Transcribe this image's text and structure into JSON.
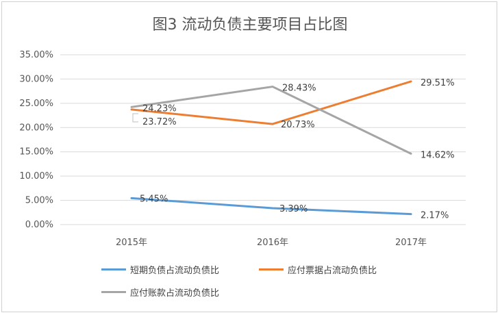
{
  "chart_data": {
    "type": "line",
    "title": "图3  流动负债主要项目占比图",
    "categories": [
      "2015年",
      "2016年",
      "2017年"
    ],
    "ylim": [
      0,
      35
    ],
    "yticks": [
      "0.00%",
      "5.00%",
      "10.00%",
      "15.00%",
      "20.00%",
      "25.00%",
      "30.00%",
      "35.00%"
    ],
    "grid": true,
    "legend_position": "bottom",
    "series": [
      {
        "name": "短期负债占流动负债比",
        "color": "#5b9bd5",
        "values": [
          5.45,
          3.39,
          2.17
        ],
        "labels": [
          "5.45%",
          "3.39%",
          "2.17%"
        ]
      },
      {
        "name": "应付票据占流动负债比",
        "color": "#ed7d31",
        "values": [
          23.72,
          20.73,
          29.51
        ],
        "labels": [
          "23.72%",
          "20.73%",
          "29.51%"
        ]
      },
      {
        "name": "应付账款占流动负债比",
        "color": "#a5a5a5",
        "values": [
          24.23,
          28.43,
          14.62
        ],
        "labels": [
          "24.23%",
          "28.43%",
          "14.62%"
        ]
      }
    ]
  }
}
